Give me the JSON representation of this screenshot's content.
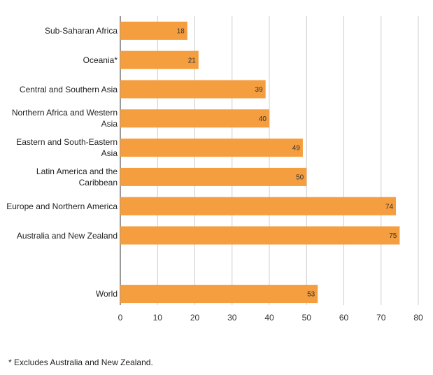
{
  "chart_data": {
    "type": "bar",
    "orientation": "horizontal",
    "categories": [
      "Sub-Saharan Africa",
      "Oceania*",
      "Central and Southern Asia",
      "Northern Africa and Western Asia",
      "Eastern and South-Eastern Asia",
      "Latin America and the Caribbean",
      "Europe and Northern America",
      "Australia and New Zealand",
      null,
      "World"
    ],
    "values": [
      18,
      21,
      39,
      40,
      49,
      50,
      74,
      75,
      null,
      53
    ],
    "color": "#f59e3f",
    "xlim": [
      0,
      80
    ],
    "xticks": [
      0,
      10,
      20,
      30,
      40,
      50,
      60,
      70,
      80
    ],
    "grid": true,
    "footnote": "* Excludes Australia and New Zealand."
  }
}
